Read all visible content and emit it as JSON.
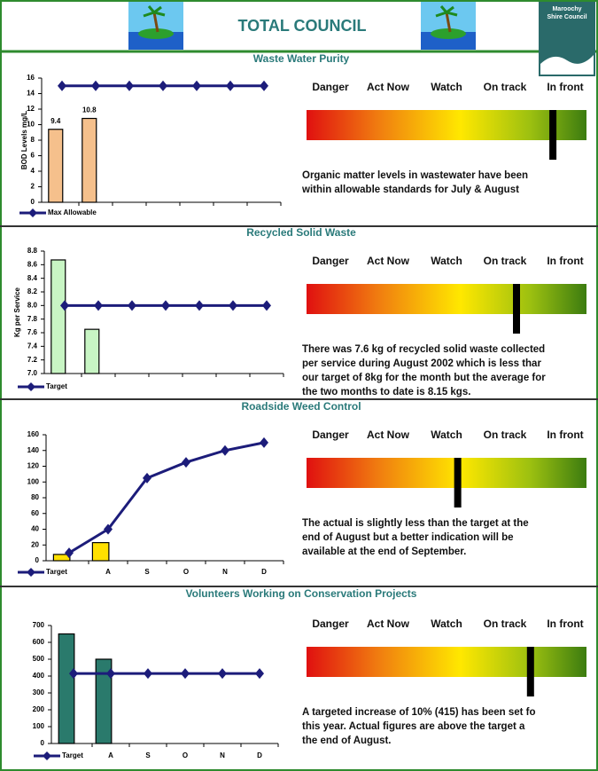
{
  "header": {
    "title": "TOTAL COUNCIL",
    "logo": [
      "Maroochy",
      "Shire Council"
    ]
  },
  "chart_data": [
    {
      "type": "combo",
      "title": "Waste Water Purity",
      "y_label": "BOD Levels mg/L",
      "categories": [
        null,
        null,
        null,
        null,
        null,
        null,
        null
      ],
      "ylim": [
        0,
        16
      ],
      "yticks": [
        0,
        2,
        4,
        6,
        8,
        10,
        12,
        14,
        16
      ],
      "data_labels": true,
      "series": [
        {
          "type": "bar",
          "color": "#f5c08c",
          "values": [
            9.4,
            10.8,
            null,
            null,
            null,
            null,
            null
          ]
        },
        {
          "type": "line",
          "name": "Max Allowable",
          "color": "#1c1c7a",
          "values": [
            15,
            15,
            15,
            15,
            15,
            15,
            15
          ]
        }
      ]
    },
    {
      "type": "combo",
      "title": "Recycled Solid Waste",
      "y_label": "Kg per Service",
      "categories": [
        null,
        null,
        null,
        null,
        null,
        null,
        null
      ],
      "ylim": [
        7,
        8.8
      ],
      "yticks": [
        {
          "value": 7,
          "label": "7.0"
        },
        7.2,
        7.4,
        7.6,
        7.8,
        {
          "value": 8,
          "label": "8.0"
        },
        8.2,
        8.4,
        8.6,
        8.8
      ],
      "data_labels": false,
      "series": [
        {
          "type": "bar",
          "color": "#c8f5c4",
          "values": [
            8.67,
            7.65,
            null,
            null,
            null,
            null,
            null
          ]
        },
        {
          "type": "line",
          "name": "Target",
          "color": "#1c1c7a",
          "values": [
            8,
            8,
            8,
            8,
            8,
            8,
            8
          ]
        }
      ]
    },
    {
      "type": "combo",
      "title": "Roadside Weed Control",
      "categories": [
        null,
        "A",
        "S",
        "O",
        "N",
        "D"
      ],
      "ylim": [
        0,
        160
      ],
      "yticks": [
        0,
        20,
        40,
        60,
        80,
        100,
        120,
        140,
        160
      ],
      "data_labels": false,
      "series": [
        {
          "type": "bar",
          "color": "#ffe000",
          "values": [
            8,
            23,
            null,
            null,
            null,
            null
          ]
        },
        {
          "type": "line",
          "name": "Target",
          "color": "#1c1c7a",
          "values": [
            10,
            40,
            105,
            125,
            140,
            150
          ]
        }
      ]
    },
    {
      "type": "combo",
      "title": "Volunteers Working on Conservation Projects",
      "categories": [
        null,
        "A",
        "S",
        "O",
        "N",
        "D"
      ],
      "ylim": [
        0,
        700
      ],
      "yticks": [
        0,
        100,
        200,
        300,
        400,
        500,
        600,
        700
      ],
      "data_labels": false,
      "series": [
        {
          "type": "bar",
          "color": "#2a7a6c",
          "values": [
            650,
            500,
            null,
            null,
            null,
            null
          ]
        },
        {
          "type": "line",
          "name": "Target",
          "color": "#1c1c7a",
          "values": [
            415,
            415,
            415,
            415,
            415,
            415
          ]
        }
      ]
    }
  ],
  "gauge_labels": [
    "Danger",
    "Act Now",
    "Watch",
    "On track",
    "In front"
  ],
  "panels": [
    {
      "marker": 88,
      "text": [
        "Organic matter levels in wastewater have been",
        "within allowable standards for July & August"
      ]
    },
    {
      "marker": 75,
      "text": [
        "There was 7.6 kg of recycled solid waste collected",
        "per service during August 2002 which is less thar",
        "our target of 8kg for the month but the average for",
        "the two months to date is 8.15 kgs."
      ]
    },
    {
      "marker": 54,
      "text": [
        "The actual is slightly less than the target at the",
        "end of August but a better indication will be",
        "available at the end of September."
      ]
    },
    {
      "marker": 80,
      "text": [
        "A targeted increase of 10% (415) has been set fo",
        "this year. Actual figures are above the target a",
        "the end of August."
      ]
    }
  ]
}
